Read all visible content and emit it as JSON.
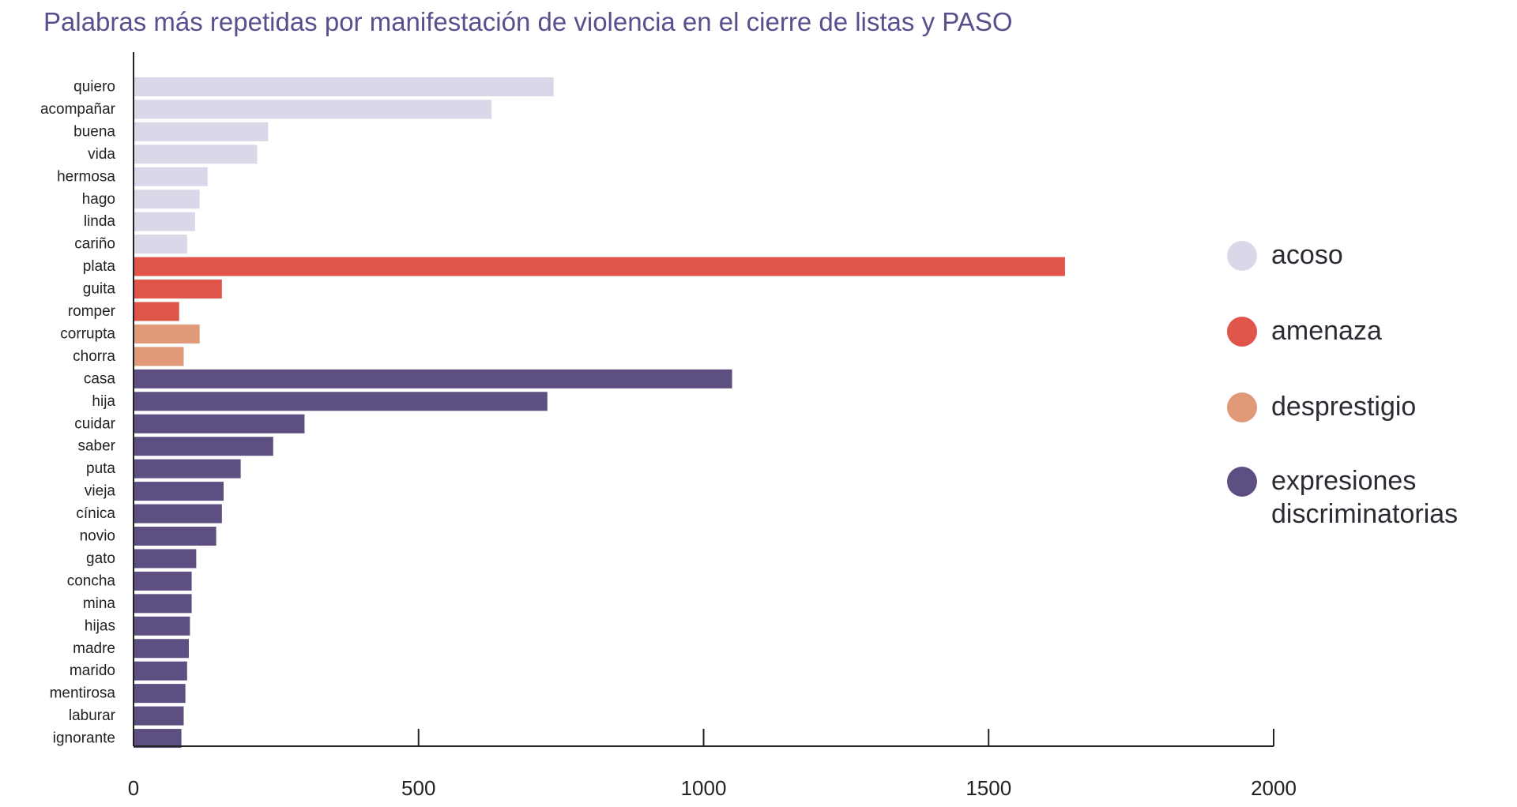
{
  "chart_data": {
    "type": "bar",
    "orientation": "horizontal",
    "title": "Palabras más repetidas por manifestación de violencia en el cierre de listas y PASO",
    "xlabel": "",
    "ylabel": "",
    "xlim": [
      0,
      2000
    ],
    "xticks": [
      0,
      500,
      1000,
      1500,
      2000
    ],
    "grid": false,
    "legend_position": "right",
    "series": [
      {
        "name": "acoso",
        "color": "#dad8e8"
      },
      {
        "name": "amenaza",
        "color": "#e0554a"
      },
      {
        "name": "desprestigio",
        "color": "#e09a78"
      },
      {
        "name": "expresiones discriminatorias",
        "color": "#5e4f82"
      }
    ],
    "bars": [
      {
        "label": "quiero",
        "value": 737,
        "series": "acoso"
      },
      {
        "label": "acompañar",
        "value": 628,
        "series": "acoso"
      },
      {
        "label": "buena",
        "value": 236,
        "series": "acoso"
      },
      {
        "label": "vida",
        "value": 217,
        "series": "acoso"
      },
      {
        "label": "hermosa",
        "value": 130,
        "series": "acoso"
      },
      {
        "label": "hago",
        "value": 116,
        "series": "acoso"
      },
      {
        "label": "linda",
        "value": 108,
        "series": "acoso"
      },
      {
        "label": "cariño",
        "value": 94,
        "series": "acoso"
      },
      {
        "label": "plata",
        "value": 1634,
        "series": "amenaza"
      },
      {
        "label": "guita",
        "value": 155,
        "series": "amenaza"
      },
      {
        "label": "romper",
        "value": 80,
        "series": "amenaza"
      },
      {
        "label": "corrupta",
        "value": 116,
        "series": "desprestigio"
      },
      {
        "label": "chorra",
        "value": 88,
        "series": "desprestigio"
      },
      {
        "label": "casa",
        "value": 1050,
        "series": "expresiones discriminatorias"
      },
      {
        "label": "hija",
        "value": 726,
        "series": "expresiones discriminatorias"
      },
      {
        "label": "cuidar",
        "value": 300,
        "series": "expresiones discriminatorias"
      },
      {
        "label": "saber",
        "value": 245,
        "series": "expresiones discriminatorias"
      },
      {
        "label": "puta",
        "value": 188,
        "series": "expresiones discriminatorias"
      },
      {
        "label": "vieja",
        "value": 158,
        "series": "expresiones discriminatorias"
      },
      {
        "label": "cínica",
        "value": 155,
        "series": "expresiones discriminatorias"
      },
      {
        "label": "novio",
        "value": 145,
        "series": "expresiones discriminatorias"
      },
      {
        "label": "gato",
        "value": 110,
        "series": "expresiones discriminatorias"
      },
      {
        "label": "concha",
        "value": 102,
        "series": "expresiones discriminatorias"
      },
      {
        "label": "mina",
        "value": 102,
        "series": "expresiones discriminatorias"
      },
      {
        "label": "hijas",
        "value": 99,
        "series": "expresiones discriminatorias"
      },
      {
        "label": "madre",
        "value": 97,
        "series": "expresiones discriminatorias"
      },
      {
        "label": "marido",
        "value": 94,
        "series": "expresiones discriminatorias"
      },
      {
        "label": "mentirosa",
        "value": 91,
        "series": "expresiones discriminatorias"
      },
      {
        "label": "laburar",
        "value": 88,
        "series": "expresiones discriminatorias"
      },
      {
        "label": "ignorante",
        "value": 84,
        "series": "expresiones discriminatorias"
      }
    ]
  },
  "legend": {
    "items": [
      {
        "label": "acoso",
        "color": "#dad8e8"
      },
      {
        "label": "amenaza",
        "color": "#e0554a"
      },
      {
        "label": "desprestigio",
        "color": "#e09a78"
      },
      {
        "label": "expresiones discriminatorias",
        "color": "#5e4f82"
      }
    ]
  }
}
